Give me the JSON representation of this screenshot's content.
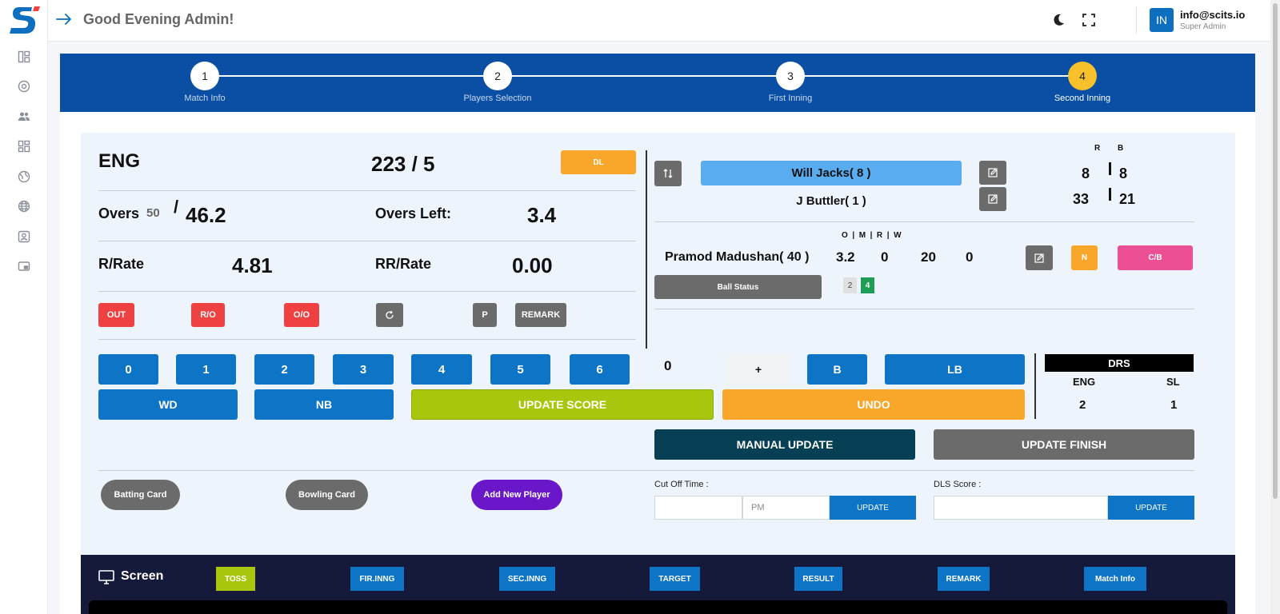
{
  "header": {
    "greeting": "Good Evening Admin!",
    "user_initials": "IN",
    "user_email": "info@scits.io",
    "user_role": "Super Admin"
  },
  "steps": [
    {
      "number": "1",
      "label": "Match Info"
    },
    {
      "number": "2",
      "label": "Players Selection"
    },
    {
      "number": "3",
      "label": "First Inning"
    },
    {
      "number": "4",
      "label": "Second Inning"
    }
  ],
  "score": {
    "team": "ENG",
    "runs_wickets": "223 / 5",
    "dl_label": "DL",
    "overs_label": "Overs",
    "overs_total": "50",
    "overs_slash": "/",
    "overs_done": "46.2",
    "overs_left_label": "Overs Left:",
    "overs_left": "3.4",
    "rrate_label": "R/Rate",
    "rrate": "4.81",
    "rrrate_label": "RR/Rate",
    "rrrate": "0.00"
  },
  "controls": {
    "out": "OUT",
    "ro": "R/O",
    "oo": "O/O",
    "p": "P",
    "remark": "REMARK"
  },
  "batting": {
    "r_header": "R",
    "b_header": "B",
    "striker_name": "Will Jacks( 8 )",
    "striker_runs": "8",
    "striker_balls": "8",
    "nonstriker_name": "J Buttler( 1 )",
    "nonstriker_runs": "33",
    "nonstriker_balls": "21"
  },
  "bowling": {
    "headers": "O  |  M  |  R  |  W",
    "bowler_name": "Pramod Madushan( 40 )",
    "overs": "3.2",
    "maidens": "0",
    "runs": "20",
    "wickets": "0",
    "n_label": "N",
    "cb_label": "C/B",
    "ball_status_label": "Ball Status",
    "ball_1": "2",
    "ball_2": "4"
  },
  "runs_pad": {
    "r0": "0",
    "r1": "1",
    "r2": "2",
    "r3": "3",
    "r4": "4",
    "r5": "5",
    "r6": "6",
    "extra_value": "0",
    "plus": "+",
    "b": "B",
    "lb": "LB",
    "wd": "WD",
    "nb": "NB",
    "update_score": "UPDATE SCORE",
    "undo": "UNDO"
  },
  "drs": {
    "title": "DRS",
    "team1": "ENG",
    "team2": "SL",
    "team1_value": "2",
    "team2_value": "1"
  },
  "actions": {
    "manual_update": "MANUAL UPDATE",
    "update_finish": "UPDATE FINISH",
    "batting_card": "Batting Card",
    "bowling_card": "Bowling Card",
    "add_new_player": "Add New Player",
    "cutoff_label": "Cut Off Time :",
    "cutoff_value": "",
    "cutoff_ampm_placeholder": "PM",
    "cutoff_update": "UPDATE",
    "dls_label": "DLS Score :",
    "dls_value": "",
    "dls_update": "UPDATE"
  },
  "screen": {
    "title": "Screen",
    "toss": "TOSS",
    "fir_inng": "FIR.INNG",
    "sec_inng": "SEC.INNG",
    "target": "TARGET",
    "result": "RESULT",
    "remark": "REMARK",
    "match_info": "Match Info"
  },
  "colors": {
    "primary": "#0e74c6",
    "stepper": "#0a4fa4",
    "active_step": "#f6c12a",
    "danger": "#ef4141",
    "warning": "#f8a72b",
    "update_score": "#a8c70c",
    "manual_update": "#073f55",
    "striker": "#5aacf0",
    "cb": "#ec4f93",
    "add_player": "#6a16c9",
    "screen_bar": "#15193a"
  }
}
